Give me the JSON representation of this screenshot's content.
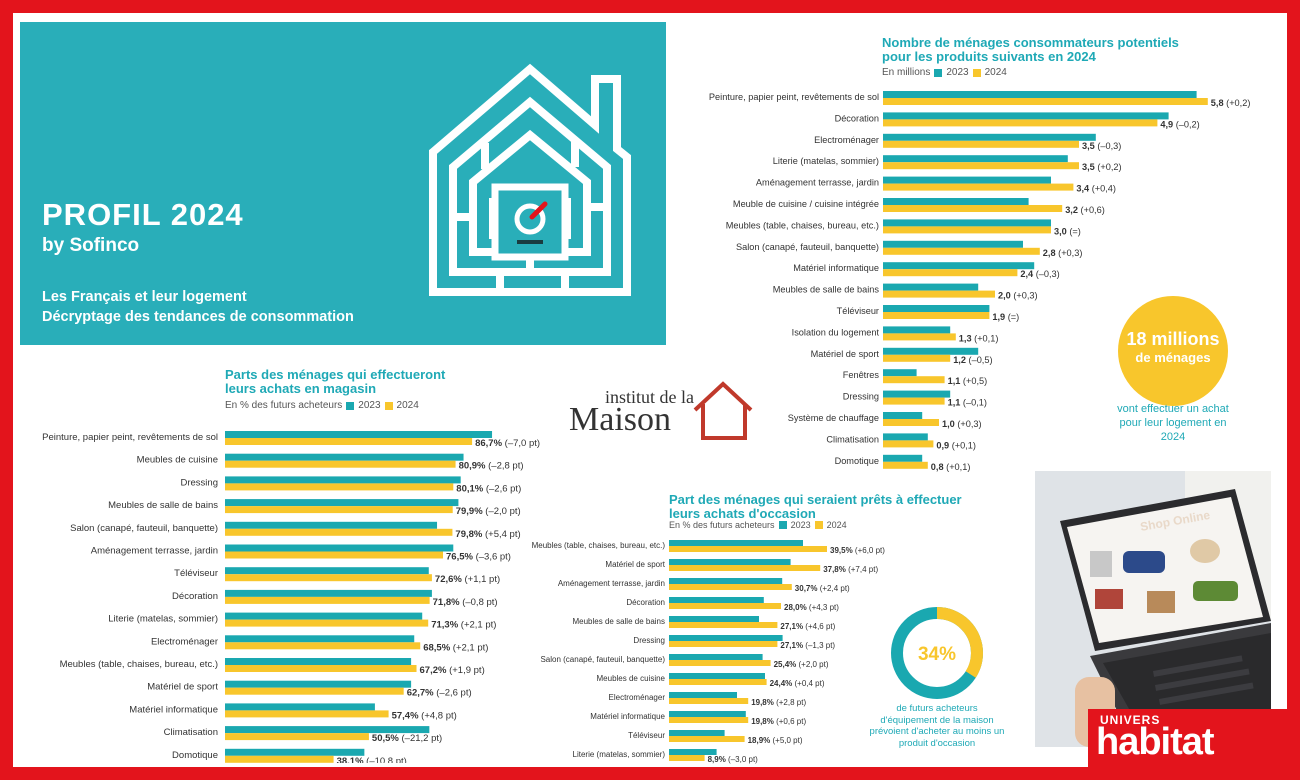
{
  "hero": {
    "brand_title": "PROFIL 2024",
    "brand_by": "by Sofinco",
    "line1": "Les Français et leur logement",
    "line2": "Décryptage des tendances de consommation"
  },
  "legend": {
    "a": "2023",
    "b": "2024"
  },
  "colors": {
    "teal": "#1aa8b0",
    "yellow": "#f8c62c",
    "red": "#e3141c",
    "title": "#1fa9b6"
  },
  "institut": {
    "line1": "institut de la",
    "line2": "Maison"
  },
  "millions": {
    "big": "18 millions",
    "small": "de ménages",
    "caption": "vont effectuer un achat pour leur logement en 2024"
  },
  "donut": {
    "value": "34%",
    "fraction": 0.34,
    "caption": "de futurs acheteurs d'équipement de la maison prévoient d'acheter au moins un produit d'occasion"
  },
  "photo": {
    "label": "Shop Online"
  },
  "badge": {
    "univers": "UNIVERS",
    "habitat": "habitat"
  },
  "chart_data": [
    {
      "type": "bar",
      "title_line1": "Nombre de ménages consommateurs potentiels",
      "title_line2": "pour les produits suivants en 2024",
      "subtitle": "En millions",
      "series_names": [
        "2023",
        "2024"
      ],
      "categories": [
        "Peinture, papier peint, revêtements de sol",
        "Décoration",
        "Electroménager",
        "Literie (matelas, sommier)",
        "Aménagement terrasse, jardin",
        "Meuble de cuisine / cuisine intégrée",
        "Meubles (table, chaises, bureau, etc.)",
        "Salon (canapé, fauteuil, banquette)",
        "Matériel informatique",
        "Meubles de salle de bains",
        "Téléviseur",
        "Isolation du logement",
        "Matériel de sport",
        "Fenêtres",
        "Dressing",
        "Système de chauffage",
        "Climatisation",
        "Domotique"
      ],
      "values_2023": [
        5.6,
        5.1,
        3.8,
        3.3,
        3.0,
        2.6,
        3.0,
        2.5,
        2.7,
        1.7,
        1.9,
        1.2,
        1.7,
        0.6,
        1.2,
        0.7,
        0.8,
        0.7
      ],
      "values_2024": [
        5.8,
        4.9,
        3.5,
        3.5,
        3.4,
        3.2,
        3.0,
        2.8,
        2.4,
        2.0,
        1.9,
        1.3,
        1.2,
        1.1,
        1.1,
        1.0,
        0.9,
        0.8
      ],
      "labels": [
        "5,8",
        "4,9",
        "3,5",
        "3,5",
        "3,4",
        "3,2",
        "3,0",
        "2,8",
        "2,4",
        "2,0",
        "1,9",
        "1,3",
        "1,2",
        "1,1",
        "1,1",
        "1,0",
        "0,9",
        "0,8"
      ],
      "deltas": [
        "(+0,2)",
        "(–0,2)",
        "(–0,3)",
        "(+0,2)",
        "(+0,4)",
        "(+0,6)",
        "(=)",
        "(+0,3)",
        "(–0,3)",
        "(+0,3)",
        "(=)",
        "(+0,1)",
        "(–0,5)",
        "(+0,5)",
        "(–0,1)",
        "(+0,3)",
        "(+0,1)",
        "(+0,1)"
      ],
      "xmax": 6
    },
    {
      "type": "bar",
      "title_line1": "Parts des ménages qui effectueront",
      "title_line2": "leurs achats en magasin",
      "subtitle": "En % des futurs acheteurs",
      "series_names": [
        "2023",
        "2024"
      ],
      "categories": [
        "Peinture, papier peint, revêtements de sol",
        "Meubles de cuisine",
        "Dressing",
        "Meubles de salle de bains",
        "Salon (canapé, fauteuil, banquette)",
        "Aménagement terrasse, jardin",
        "Téléviseur",
        "Décoration",
        "Literie (matelas, sommier)",
        "Electroménager",
        "Meubles (table, chaises, bureau, etc.)",
        "Matériel de sport",
        "Matériel informatique",
        "Climatisation",
        "Domotique"
      ],
      "values_2023": [
        93.7,
        83.7,
        82.7,
        81.9,
        74.4,
        80.1,
        71.5,
        72.6,
        69.2,
        66.4,
        65.3,
        65.3,
        52.6,
        71.7,
        48.9
      ],
      "values_2024": [
        86.7,
        80.9,
        80.1,
        79.9,
        79.8,
        76.5,
        72.6,
        71.8,
        71.3,
        68.5,
        67.2,
        62.7,
        57.4,
        50.5,
        38.1
      ],
      "labels": [
        "86,7%",
        "80,9%",
        "80,1%",
        "79,9%",
        "79,8%",
        "76,5%",
        "72,6%",
        "71,8%",
        "71,3%",
        "68,5%",
        "67,2%",
        "62,7%",
        "57,4%",
        "50,5%",
        "38,1%"
      ],
      "deltas": [
        "(–7,0 pt)",
        "(–2,8 pt)",
        "(–2,6 pt)",
        "(–2,0 pt)",
        "(+5,4 pt)",
        "(–3,6 pt)",
        "(+1,1 pt)",
        "(–0,8 pt)",
        "(+2,1 pt)",
        "(+2,1 pt)",
        "(+1,9 pt)",
        "(–2,6 pt)",
        "(+4,8 pt)",
        "(–21,2 pt)",
        "(–10,8 pt)"
      ],
      "xmax": 100
    },
    {
      "type": "bar",
      "title_line1": "Part des ménages qui seraient prêts à effectuer",
      "title_line2": "leurs achats d'occasion",
      "subtitle": "En % des futurs acheteurs",
      "series_names": [
        "2023",
        "2024"
      ],
      "categories": [
        "Meubles (table, chaises, bureau, etc.)",
        "Matériel de sport",
        "Aménagement terrasse, jardin",
        "Décoration",
        "Meubles de salle de bains",
        "Dressing",
        "Salon (canapé, fauteuil, banquette)",
        "Meubles de cuisine",
        "Electroménager",
        "Matériel informatique",
        "Téléviseur",
        "Literie (matelas, sommier)"
      ],
      "values_2023": [
        33.5,
        30.4,
        28.3,
        23.7,
        22.5,
        28.4,
        23.4,
        24.0,
        17.0,
        19.2,
        13.9,
        11.9
      ],
      "values_2024": [
        39.5,
        37.8,
        30.7,
        28.0,
        27.1,
        27.1,
        25.4,
        24.4,
        19.8,
        19.8,
        18.9,
        8.9
      ],
      "labels": [
        "39,5%",
        "37,8%",
        "30,7%",
        "28,0%",
        "27,1%",
        "27,1%",
        "25,4%",
        "24,4%",
        "19,8%",
        "19,8%",
        "18,9%",
        "8,9%"
      ],
      "deltas": [
        "(+6,0 pt)",
        "(+7,4 pt)",
        "(+2,4 pt)",
        "(+4,3 pt)",
        "(+4,6 pt)",
        "(–1,3 pt)",
        "(+2,0 pt)",
        "(+0,4 pt)",
        "(+2,8 pt)",
        "(+0,6 pt)",
        "(+5,0 pt)",
        "(–3,0 pt)"
      ],
      "xmax": 100
    }
  ]
}
